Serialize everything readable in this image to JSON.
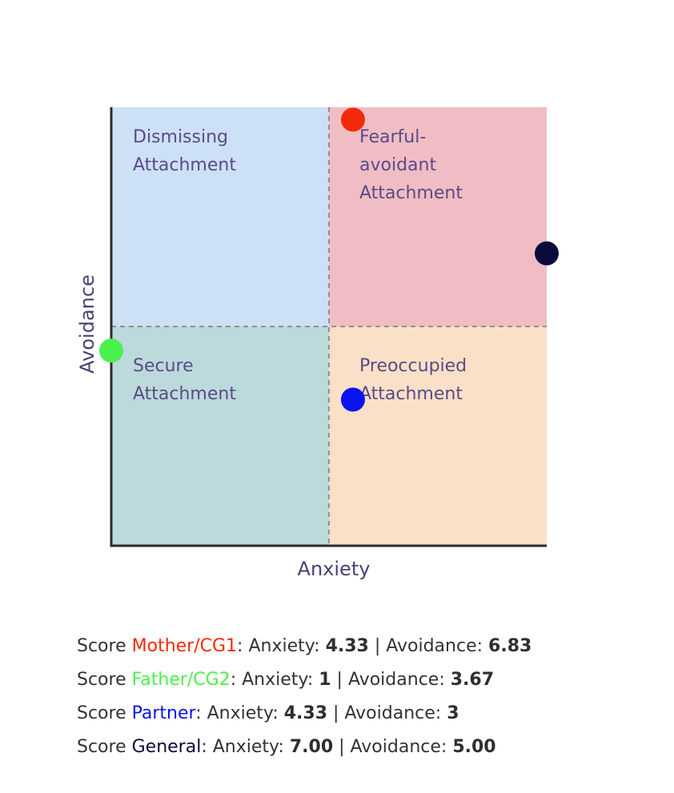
{
  "chart_data": {
    "type": "scatter",
    "xlabel": "Anxiety",
    "ylabel": "Avoidance",
    "xlim": [
      1,
      7
    ],
    "ylim": [
      1,
      7
    ],
    "midpoint": {
      "x": 4,
      "y": 4
    },
    "quadrants": [
      {
        "key": "dismissing",
        "lines": [
          "Dismissing",
          "Attachment"
        ],
        "color": "#cce0f6"
      },
      {
        "key": "fearful",
        "lines": [
          "Fearful-",
          "avoidant",
          "Attachment"
        ],
        "color": "#f0bdc4"
      },
      {
        "key": "secure",
        "lines": [
          "Secure",
          "Attachment"
        ],
        "color": "#bcdadb"
      },
      {
        "key": "preoccupied",
        "lines": [
          "Preoccupied",
          "Attachment"
        ],
        "color": "#fae0c6"
      }
    ],
    "series": [
      {
        "name": "Mother/CG1",
        "x": 4.33,
        "y": 6.83,
        "color": "#f52a0a"
      },
      {
        "name": "Father/CG2",
        "x": 1,
        "y": 3.67,
        "color": "#4cf04c"
      },
      {
        "name": "Partner",
        "x": 4.33,
        "y": 3,
        "color": "#0a14f0"
      },
      {
        "name": "General",
        "x": 7.0,
        "y": 5.0,
        "color": "#0a0a3c"
      }
    ]
  },
  "scores": [
    {
      "prefix": "Score ",
      "name": "Mother/CG1",
      "color": "#f52a0a",
      "anxiety_label": ": Anxiety: ",
      "anxiety": "4.33",
      "sep": " | Avoidance: ",
      "avoidance": "6.83"
    },
    {
      "prefix": "Score ",
      "name": "Father/CG2",
      "color": "#4cf04c",
      "anxiety_label": ": Anxiety: ",
      "anxiety": "1",
      "sep": " | Avoidance: ",
      "avoidance": "3.67"
    },
    {
      "prefix": "Score ",
      "name": "Partner",
      "color": "#0a14f0",
      "anxiety_label": ": Anxiety: ",
      "anxiety": "4.33",
      "sep": " | Avoidance: ",
      "avoidance": "3"
    },
    {
      "prefix": "Score ",
      "name": "General",
      "color": "#0a0a3c",
      "anxiety_label": ": Anxiety: ",
      "anxiety": "7.00",
      "sep": " | Avoidance: ",
      "avoidance": "5.00"
    }
  ]
}
